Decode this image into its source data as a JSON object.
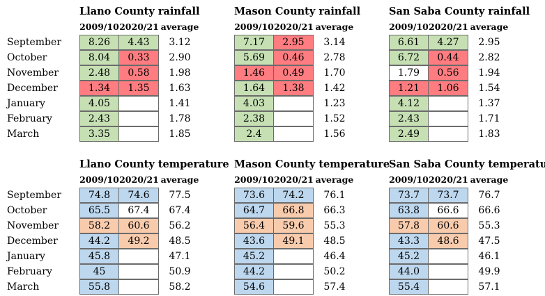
{
  "months": [
    "September",
    "October",
    "November",
    "December",
    "January",
    "February",
    "March"
  ],
  "columns": {
    "col1": "2009/10",
    "col2": "2020/21",
    "col3": "average"
  },
  "rainfall": [
    {
      "title": "Llano County rainfall",
      "rows": [
        {
          "v1": "8.26",
          "c1": "green",
          "v2": "4.43",
          "c2": "green",
          "avg": "3.12"
        },
        {
          "v1": "8.04",
          "c1": "green",
          "v2": "0.33",
          "c2": "red",
          "avg": "2.90"
        },
        {
          "v1": "2.48",
          "c1": "green",
          "v2": "0.58",
          "c2": "red",
          "avg": "1.98"
        },
        {
          "v1": "1.34",
          "c1": "red",
          "v2": "1.35",
          "c2": "red",
          "avg": "1.63"
        },
        {
          "v1": "4.05",
          "c1": "green",
          "v2": "",
          "c2": "white",
          "avg": "1.41"
        },
        {
          "v1": "2.43",
          "c1": "green",
          "v2": "",
          "c2": "white",
          "avg": "1.78"
        },
        {
          "v1": "3.35",
          "c1": "green",
          "v2": "",
          "c2": "white",
          "avg": "1.85"
        }
      ]
    },
    {
      "title": "Mason County rainfall",
      "rows": [
        {
          "v1": "7.17",
          "c1": "green",
          "v2": "2.95",
          "c2": "red",
          "avg": "3.14"
        },
        {
          "v1": "5.69",
          "c1": "green",
          "v2": "0.46",
          "c2": "red",
          "avg": "2.78"
        },
        {
          "v1": "1.46",
          "c1": "red",
          "v2": "0.49",
          "c2": "red",
          "avg": "1.70"
        },
        {
          "v1": "1.64",
          "c1": "green",
          "v2": "1.38",
          "c2": "red",
          "avg": "1.42"
        },
        {
          "v1": "4.03",
          "c1": "green",
          "v2": "",
          "c2": "white",
          "avg": "1.23"
        },
        {
          "v1": "2.38",
          "c1": "green",
          "v2": "",
          "c2": "white",
          "avg": "1.52"
        },
        {
          "v1": "2.4",
          "c1": "green",
          "v2": "",
          "c2": "white",
          "avg": "1.56"
        }
      ]
    },
    {
      "title": "San Saba County rainfall",
      "rows": [
        {
          "v1": "6.61",
          "c1": "green",
          "v2": "4.27",
          "c2": "green",
          "avg": "2.95"
        },
        {
          "v1": "6.72",
          "c1": "green",
          "v2": "0.44",
          "c2": "red",
          "avg": "2.82"
        },
        {
          "v1": "1.79",
          "c1": "white",
          "v2": "0.56",
          "c2": "red",
          "avg": "1.94"
        },
        {
          "v1": "1.21",
          "c1": "red",
          "v2": "1.06",
          "c2": "red",
          "avg": "1.54"
        },
        {
          "v1": "4.12",
          "c1": "green",
          "v2": "",
          "c2": "white",
          "avg": "1.37"
        },
        {
          "v1": "2.43",
          "c1": "green",
          "v2": "",
          "c2": "white",
          "avg": "1.71"
        },
        {
          "v1": "2.49",
          "c1": "green",
          "v2": "",
          "c2": "white",
          "avg": "1.83"
        }
      ]
    }
  ],
  "temperature": [
    {
      "title": "Llano County temperature",
      "rows": [
        {
          "v1": "74.8",
          "c1": "blue",
          "v2": "74.6",
          "c2": "blue",
          "avg": "77.5"
        },
        {
          "v1": "65.5",
          "c1": "blue",
          "v2": "67.4",
          "c2": "white",
          "avg": "67.4"
        },
        {
          "v1": "58.2",
          "c1": "orange",
          "v2": "60.6",
          "c2": "orange",
          "avg": "56.2"
        },
        {
          "v1": "44.2",
          "c1": "blue",
          "v2": "49.2",
          "c2": "orange",
          "avg": "48.5"
        },
        {
          "v1": "45.8",
          "c1": "blue",
          "v2": "",
          "c2": "white",
          "avg": "47.1"
        },
        {
          "v1": "45",
          "c1": "blue",
          "v2": "",
          "c2": "white",
          "avg": "50.9"
        },
        {
          "v1": "55.8",
          "c1": "blue",
          "v2": "",
          "c2": "white",
          "avg": "58.2"
        }
      ]
    },
    {
      "title": "Mason County temperature",
      "rows": [
        {
          "v1": "73.6",
          "c1": "blue",
          "v2": "74.2",
          "c2": "blue",
          "avg": "76.1"
        },
        {
          "v1": "64.7",
          "c1": "blue",
          "v2": "66.8",
          "c2": "orange",
          "avg": "66.3"
        },
        {
          "v1": "56.4",
          "c1": "orange",
          "v2": "59.6",
          "c2": "orange",
          "avg": "55.3"
        },
        {
          "v1": "43.6",
          "c1": "blue",
          "v2": "49.1",
          "c2": "orange",
          "avg": "48.5"
        },
        {
          "v1": "45.2",
          "c1": "blue",
          "v2": "",
          "c2": "white",
          "avg": "46.4"
        },
        {
          "v1": "44.2",
          "c1": "blue",
          "v2": "",
          "c2": "white",
          "avg": "50.2"
        },
        {
          "v1": "54.6",
          "c1": "blue",
          "v2": "",
          "c2": "white",
          "avg": "57.4"
        }
      ]
    },
    {
      "title": "San Saba County temperature",
      "rows": [
        {
          "v1": "73.7",
          "c1": "blue",
          "v2": "73.7",
          "c2": "blue",
          "avg": "76.7"
        },
        {
          "v1": "63.8",
          "c1": "blue",
          "v2": "66.6",
          "c2": "white",
          "avg": "66.6"
        },
        {
          "v1": "57.8",
          "c1": "orange",
          "v2": "60.6",
          "c2": "orange",
          "avg": "55.3"
        },
        {
          "v1": "43.3",
          "c1": "blue",
          "v2": "48.6",
          "c2": "orange",
          "avg": "47.5"
        },
        {
          "v1": "45.2",
          "c1": "blue",
          "v2": "",
          "c2": "white",
          "avg": "46.1"
        },
        {
          "v1": "44.0",
          "c1": "blue",
          "v2": "",
          "c2": "white",
          "avg": "49.9"
        },
        {
          "v1": "55.4",
          "c1": "blue",
          "v2": "",
          "c2": "white",
          "avg": "57.1"
        }
      ]
    }
  ]
}
